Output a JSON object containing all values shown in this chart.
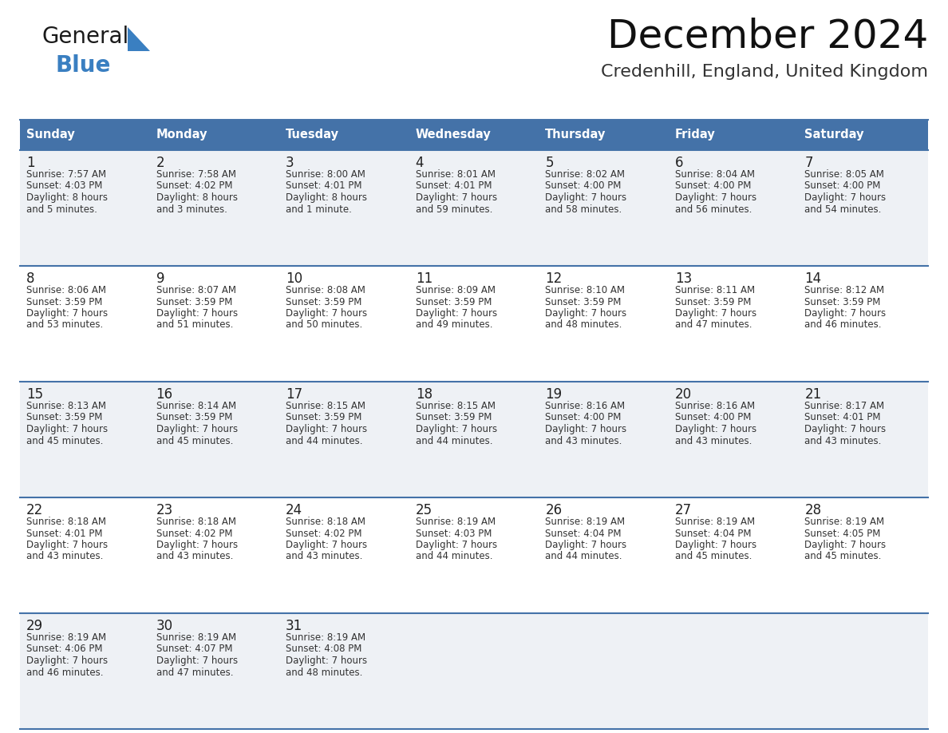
{
  "title": "December 2024",
  "subtitle": "Credenhill, England, United Kingdom",
  "days_of_week": [
    "Sunday",
    "Monday",
    "Tuesday",
    "Wednesday",
    "Thursday",
    "Friday",
    "Saturday"
  ],
  "header_bg": "#4472a8",
  "header_text": "#ffffff",
  "row_bg_odd": "#eef1f5",
  "row_bg_even": "#ffffff",
  "row_border": "#4472a8",
  "day_number_color": "#222222",
  "text_color": "#333333",
  "title_color": "#111111",
  "subtitle_color": "#333333",
  "logo_blue": "#3a7fc1",
  "logo_black": "#1a1a1a",
  "calendar_data": [
    [
      {
        "day": 1,
        "sunrise": "7:57 AM",
        "sunset": "4:03 PM",
        "daylight": "8 hours",
        "daylight2": "and 5 minutes."
      },
      {
        "day": 2,
        "sunrise": "7:58 AM",
        "sunset": "4:02 PM",
        "daylight": "8 hours",
        "daylight2": "and 3 minutes."
      },
      {
        "day": 3,
        "sunrise": "8:00 AM",
        "sunset": "4:01 PM",
        "daylight": "8 hours",
        "daylight2": "and 1 minute."
      },
      {
        "day": 4,
        "sunrise": "8:01 AM",
        "sunset": "4:01 PM",
        "daylight": "7 hours",
        "daylight2": "and 59 minutes."
      },
      {
        "day": 5,
        "sunrise": "8:02 AM",
        "sunset": "4:00 PM",
        "daylight": "7 hours",
        "daylight2": "and 58 minutes."
      },
      {
        "day": 6,
        "sunrise": "8:04 AM",
        "sunset": "4:00 PM",
        "daylight": "7 hours",
        "daylight2": "and 56 minutes."
      },
      {
        "day": 7,
        "sunrise": "8:05 AM",
        "sunset": "4:00 PM",
        "daylight": "7 hours",
        "daylight2": "and 54 minutes."
      }
    ],
    [
      {
        "day": 8,
        "sunrise": "8:06 AM",
        "sunset": "3:59 PM",
        "daylight": "7 hours",
        "daylight2": "and 53 minutes."
      },
      {
        "day": 9,
        "sunrise": "8:07 AM",
        "sunset": "3:59 PM",
        "daylight": "7 hours",
        "daylight2": "and 51 minutes."
      },
      {
        "day": 10,
        "sunrise": "8:08 AM",
        "sunset": "3:59 PM",
        "daylight": "7 hours",
        "daylight2": "and 50 minutes."
      },
      {
        "day": 11,
        "sunrise": "8:09 AM",
        "sunset": "3:59 PM",
        "daylight": "7 hours",
        "daylight2": "and 49 minutes."
      },
      {
        "day": 12,
        "sunrise": "8:10 AM",
        "sunset": "3:59 PM",
        "daylight": "7 hours",
        "daylight2": "and 48 minutes."
      },
      {
        "day": 13,
        "sunrise": "8:11 AM",
        "sunset": "3:59 PM",
        "daylight": "7 hours",
        "daylight2": "and 47 minutes."
      },
      {
        "day": 14,
        "sunrise": "8:12 AM",
        "sunset": "3:59 PM",
        "daylight": "7 hours",
        "daylight2": "and 46 minutes."
      }
    ],
    [
      {
        "day": 15,
        "sunrise": "8:13 AM",
        "sunset": "3:59 PM",
        "daylight": "7 hours",
        "daylight2": "and 45 minutes."
      },
      {
        "day": 16,
        "sunrise": "8:14 AM",
        "sunset": "3:59 PM",
        "daylight": "7 hours",
        "daylight2": "and 45 minutes."
      },
      {
        "day": 17,
        "sunrise": "8:15 AM",
        "sunset": "3:59 PM",
        "daylight": "7 hours",
        "daylight2": "and 44 minutes."
      },
      {
        "day": 18,
        "sunrise": "8:15 AM",
        "sunset": "3:59 PM",
        "daylight": "7 hours",
        "daylight2": "and 44 minutes."
      },
      {
        "day": 19,
        "sunrise": "8:16 AM",
        "sunset": "4:00 PM",
        "daylight": "7 hours",
        "daylight2": "and 43 minutes."
      },
      {
        "day": 20,
        "sunrise": "8:16 AM",
        "sunset": "4:00 PM",
        "daylight": "7 hours",
        "daylight2": "and 43 minutes."
      },
      {
        "day": 21,
        "sunrise": "8:17 AM",
        "sunset": "4:01 PM",
        "daylight": "7 hours",
        "daylight2": "and 43 minutes."
      }
    ],
    [
      {
        "day": 22,
        "sunrise": "8:18 AM",
        "sunset": "4:01 PM",
        "daylight": "7 hours",
        "daylight2": "and 43 minutes."
      },
      {
        "day": 23,
        "sunrise": "8:18 AM",
        "sunset": "4:02 PM",
        "daylight": "7 hours",
        "daylight2": "and 43 minutes."
      },
      {
        "day": 24,
        "sunrise": "8:18 AM",
        "sunset": "4:02 PM",
        "daylight": "7 hours",
        "daylight2": "and 43 minutes."
      },
      {
        "day": 25,
        "sunrise": "8:19 AM",
        "sunset": "4:03 PM",
        "daylight": "7 hours",
        "daylight2": "and 44 minutes."
      },
      {
        "day": 26,
        "sunrise": "8:19 AM",
        "sunset": "4:04 PM",
        "daylight": "7 hours",
        "daylight2": "and 44 minutes."
      },
      {
        "day": 27,
        "sunrise": "8:19 AM",
        "sunset": "4:04 PM",
        "daylight": "7 hours",
        "daylight2": "and 45 minutes."
      },
      {
        "day": 28,
        "sunrise": "8:19 AM",
        "sunset": "4:05 PM",
        "daylight": "7 hours",
        "daylight2": "and 45 minutes."
      }
    ],
    [
      {
        "day": 29,
        "sunrise": "8:19 AM",
        "sunset": "4:06 PM",
        "daylight": "7 hours",
        "daylight2": "and 46 minutes."
      },
      {
        "day": 30,
        "sunrise": "8:19 AM",
        "sunset": "4:07 PM",
        "daylight": "7 hours",
        "daylight2": "and 47 minutes."
      },
      {
        "day": 31,
        "sunrise": "8:19 AM",
        "sunset": "4:08 PM",
        "daylight": "7 hours",
        "daylight2": "and 48 minutes."
      },
      null,
      null,
      null,
      null
    ]
  ]
}
